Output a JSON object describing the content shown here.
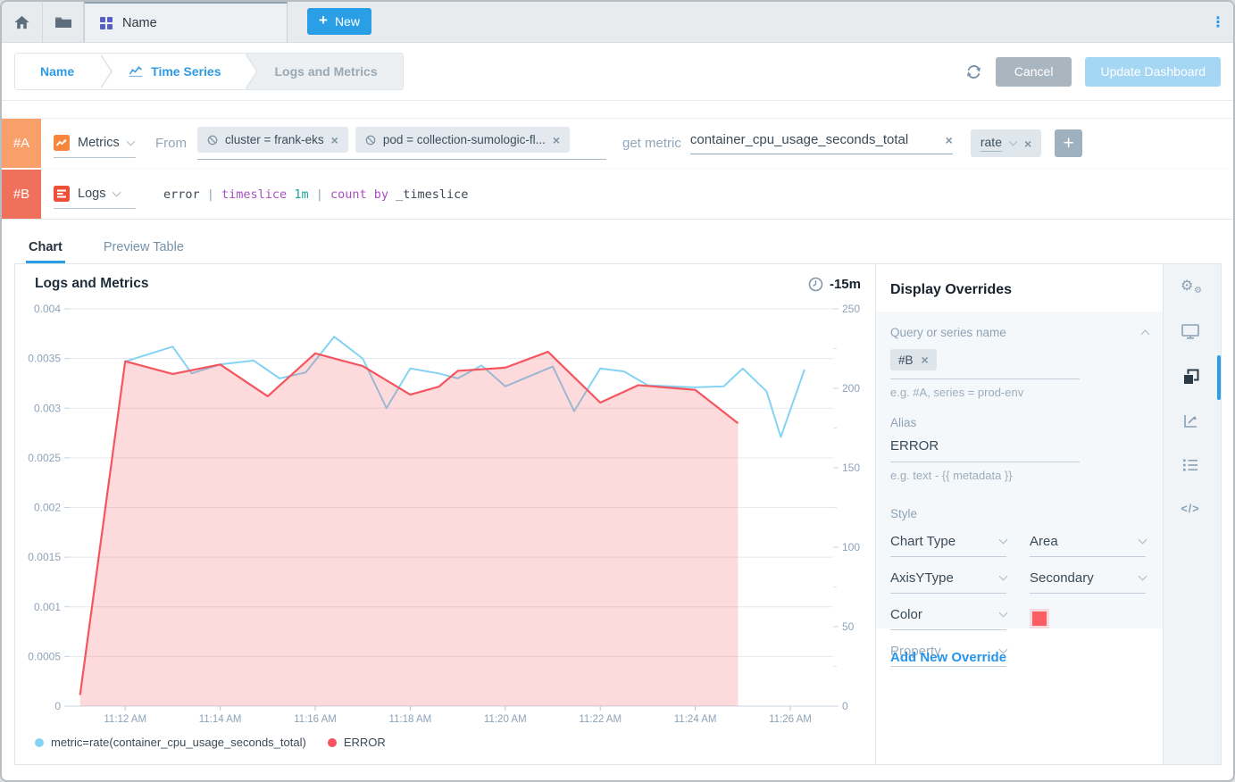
{
  "topbar": {
    "tab_title": "Name",
    "new_button": "New"
  },
  "breadcrumb": {
    "items": [
      "Name",
      "Time Series",
      "Logs and Metrics"
    ]
  },
  "header_actions": {
    "cancel": "Cancel",
    "update": "Update Dashboard"
  },
  "query_rows": {
    "a": {
      "badge": "#A",
      "type": "Metrics",
      "from_label": "From",
      "filters": [
        "cluster = frank-eks",
        "pod = collection-sumologic-fl..."
      ],
      "get_metric_label": "get metric",
      "metric": "container_cpu_usage_seconds_total",
      "operator": "rate"
    },
    "b": {
      "badge": "#B",
      "type": "Logs",
      "query_parts": [
        {
          "text": "error",
          "color": "#3b4754"
        },
        {
          "text": " | ",
          "color": "#8da2b5"
        },
        {
          "text": "timeslice",
          "color": "#a84fc0"
        },
        {
          "text": " 1m",
          "color": "#1fa39b"
        },
        {
          "text": " | ",
          "color": "#8da2b5"
        },
        {
          "text": "count by",
          "color": "#a84fc0"
        },
        {
          "text": " _timeslice",
          "color": "#3b4754"
        }
      ]
    }
  },
  "tabs": {
    "chart": "Chart",
    "preview": "Preview Table"
  },
  "chart_data": {
    "type": "line+area",
    "title": "Logs and Metrics",
    "time_range": "-15m",
    "x_ticks": [
      "11:12 AM",
      "11:14 AM",
      "11:16 AM",
      "11:18 AM",
      "11:20 AM",
      "11:22 AM",
      "11:24 AM",
      "11:26 AM"
    ],
    "x_tick_minutes": [
      1,
      3,
      5,
      7,
      9,
      11,
      13,
      15
    ],
    "x_domain_minutes": [
      0,
      16
    ],
    "x_start_time": "11:11 AM",
    "grid": true,
    "y_left": {
      "max": 0.004,
      "min": 0,
      "tick_values": [
        0,
        0.0005,
        0.001,
        0.0015,
        0.002,
        0.0025,
        0.003,
        0.0035,
        0.004
      ],
      "tick_labels": [
        "0",
        "0.0005",
        "0.001",
        "0.0015",
        "0.002",
        "0.0025",
        "0.003",
        "0.0035",
        "0.004"
      ]
    },
    "y_right": {
      "max": 250,
      "min": 0,
      "tick_values": [
        0,
        50,
        100,
        150,
        200,
        250
      ],
      "tick_labels": [
        "0",
        "50",
        "100",
        "150",
        "200",
        "250"
      ]
    },
    "series": [
      {
        "name": "metric=rate(container_cpu_usage_seconds_total)",
        "type": "line",
        "axis": "left",
        "color": "#85d3f2",
        "points": [
          [
            1,
            0.00347
          ],
          [
            2,
            0.00362
          ],
          [
            2.4,
            0.00335
          ],
          [
            3,
            0.00344
          ],
          [
            3.7,
            0.00348
          ],
          [
            4.25,
            0.0033
          ],
          [
            4.8,
            0.00336
          ],
          [
            5.4,
            0.00372
          ],
          [
            6,
            0.0035
          ],
          [
            6.5,
            0.003
          ],
          [
            7,
            0.0034
          ],
          [
            7.6,
            0.00335
          ],
          [
            8,
            0.0033
          ],
          [
            8.5,
            0.00343
          ],
          [
            9,
            0.00322
          ],
          [
            10,
            0.00342
          ],
          [
            10.45,
            0.00297
          ],
          [
            11,
            0.0034
          ],
          [
            11.5,
            0.00337
          ],
          [
            12,
            0.00323
          ],
          [
            13,
            0.00321
          ],
          [
            13.6,
            0.00322
          ],
          [
            14,
            0.0034
          ],
          [
            14.5,
            0.00317
          ],
          [
            14.8,
            0.00271
          ],
          [
            15.3,
            0.00339
          ]
        ]
      },
      {
        "name": "ERROR",
        "type": "area",
        "axis": "right",
        "color": "#f4555e",
        "fill": "rgba(244,85,94,0.22)",
        "points": [
          [
            0.05,
            7
          ],
          [
            1,
            217
          ],
          [
            2,
            209
          ],
          [
            3,
            215
          ],
          [
            4,
            195
          ],
          [
            5,
            222
          ],
          [
            6,
            214
          ],
          [
            7,
            196
          ],
          [
            7.6,
            201
          ],
          [
            8,
            211
          ],
          [
            9,
            213
          ],
          [
            9.9,
            223
          ],
          [
            11,
            191
          ],
          [
            11.8,
            202
          ],
          [
            13,
            199
          ],
          [
            13.9,
            178
          ]
        ]
      }
    ],
    "legend": [
      {
        "label": "metric=rate(container_cpu_usage_seconds_total)",
        "color": "#85d3f2"
      },
      {
        "label": "ERROR",
        "color": "#f4555e"
      }
    ],
    "legend_position": "bottom"
  },
  "overrides": {
    "title": "Display Overrides",
    "query_label": "Query or series name",
    "query_chip": "#B",
    "query_hint": "e.g. #A, series = prod-env",
    "alias_label": "Alias",
    "alias_value": "ERROR",
    "alias_hint": "e.g. text - {{ metadata }}",
    "style_label": "Style",
    "style_rows": [
      {
        "label": "Chart Type",
        "value": "Area"
      },
      {
        "label": "AxisYType",
        "value": "Secondary"
      },
      {
        "label": "Color",
        "value_color": "#fb5e62"
      },
      {
        "label": "Property",
        "value": ""
      }
    ],
    "add_new": "Add New Override"
  },
  "colors": {
    "accent_blue": "#2b9fe6",
    "badge_a": "#f9a06a",
    "badge_b": "#ef705b",
    "metric_line": "#85d3f2",
    "error_line": "#f4555e",
    "error_fill": "rgba(244,85,94,0.22)"
  }
}
